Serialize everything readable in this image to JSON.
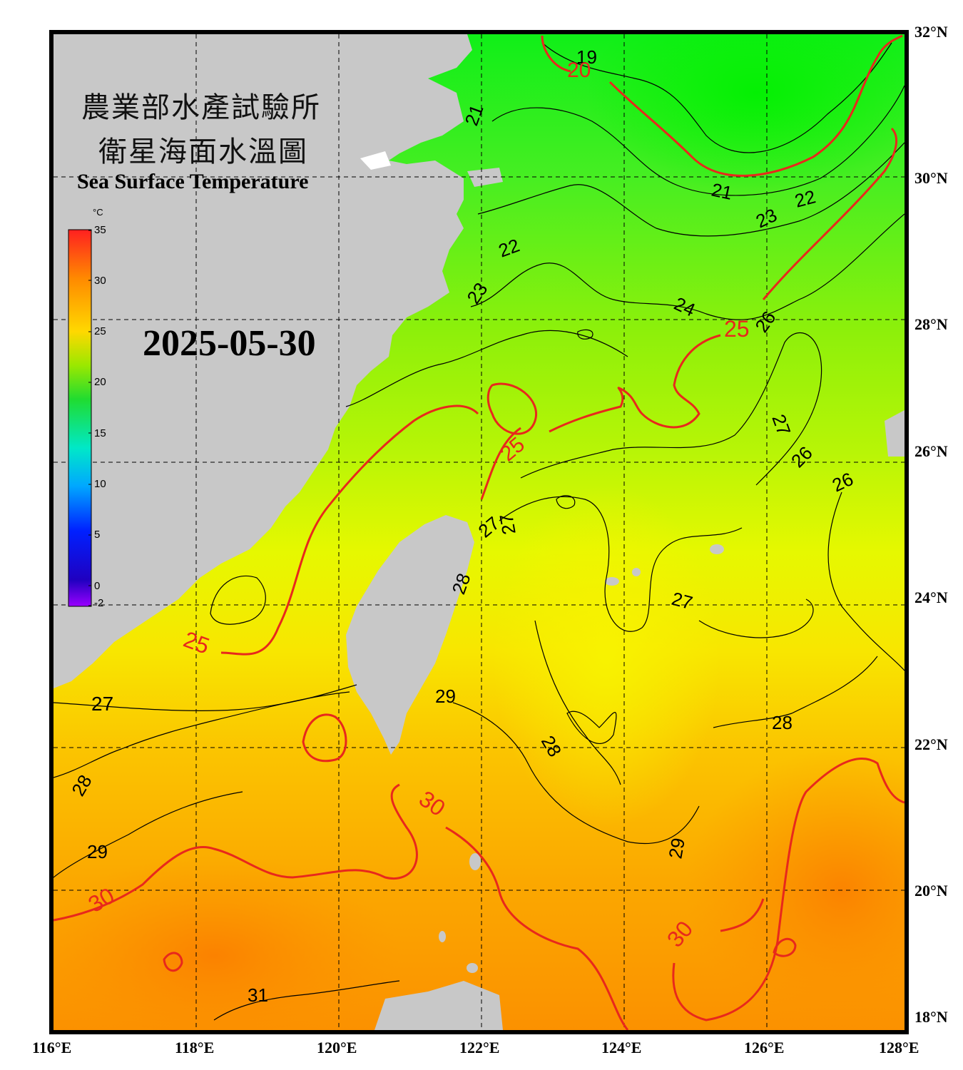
{
  "title_zh_line1": "農業部水產試驗所",
  "title_zh_line2": "衛星海面水溫圖",
  "title_en": "Sea Surface Temperature",
  "date": "2025-05-30",
  "colorbar": {
    "unit": "°C",
    "min": -2,
    "max": 35,
    "ticks": [
      "35",
      "30",
      "25",
      "20",
      "15",
      "10",
      "5",
      "0",
      "-2"
    ]
  },
  "lat_labels": [
    "32°N",
    "30°N",
    "28°N",
    "26°N",
    "24°N",
    "22°N",
    "20°N",
    "18°N"
  ],
  "lon_labels": [
    "116°E",
    "118°E",
    "120°E",
    "122°E",
    "124°E",
    "126°E",
    "128°E"
  ],
  "contour_labels": {
    "black": [
      "19",
      "21",
      "21",
      "22",
      "22",
      "23",
      "23",
      "24",
      "26",
      "26",
      "27",
      "27",
      "26",
      "27",
      "27",
      "28",
      "29",
      "28",
      "28",
      "28",
      "29",
      "29",
      "31"
    ],
    "red": [
      "20",
      "25",
      "25",
      "25",
      "30",
      "30",
      "30"
    ]
  },
  "colors": {
    "land": "#c8c8c8",
    "contour_25_30": "#e8281c",
    "contour_other": "#000000",
    "frame": "#000000"
  }
}
